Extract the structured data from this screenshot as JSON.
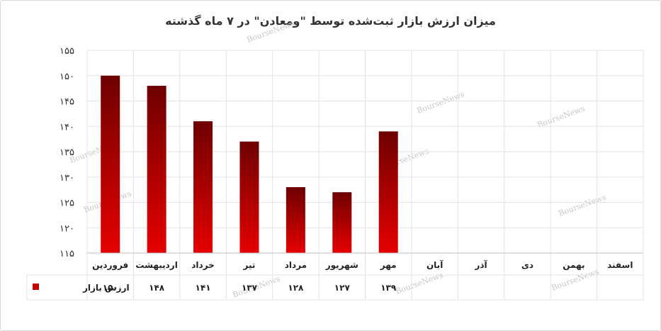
{
  "chart_data": {
    "type": "bar",
    "title": "میزان ارزش بازار ثبت‌شده توسط \"ومعادن\" در ۷ ماه گذشته",
    "categories": [
      "فروردین",
      "اردیبهشت",
      "خرداد",
      "تیر",
      "مرداد",
      "شهریور",
      "مهر",
      "آبان",
      "آذر",
      "دی",
      "بهمن",
      "اسفند"
    ],
    "series": [
      {
        "name": "ارزش بازار",
        "values": [
          150,
          148,
          141,
          137,
          128,
          127,
          139,
          null,
          null,
          null,
          null,
          null
        ],
        "labels": [
          "۱۵۰",
          "۱۴۸",
          "۱۴۱",
          "۱۳۷",
          "۱۲۸",
          "۱۲۷",
          "۱۳۹",
          "",
          "",
          "",
          "",
          ""
        ]
      }
    ],
    "ylim": [
      115,
      155
    ],
    "yticks": [
      115,
      120,
      125,
      130,
      135,
      140,
      145,
      150,
      155
    ],
    "ytick_labels": [
      "۱۱۵",
      "۱۲۰",
      "۱۲۵",
      "۱۳۰",
      "۱۳۵",
      "۱۴۰",
      "۱۴۵",
      "۱۵۰",
      "۱۵۵"
    ],
    "grid": true,
    "legend": "data-table",
    "colors": {
      "bar_top": "#6e0000",
      "bar_bottom": "#e60000",
      "legend_swatch": "#c00000"
    },
    "watermark": "BourseNews"
  }
}
